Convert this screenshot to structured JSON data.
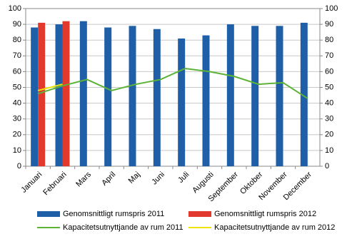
{
  "chart_data": {
    "type": "bar-line",
    "categories": [
      "Januari",
      "Februari",
      "Mars",
      "April",
      "Maj",
      "Juni",
      "Juli",
      "Augusti",
      "September",
      "Oktober",
      "November",
      "December"
    ],
    "series": [
      {
        "name": "Genomsnittligt rumspris 2011",
        "type": "bar",
        "color": "#1f5fa8",
        "values": [
          88,
          90,
          92,
          88,
          89,
          87,
          81,
          83,
          90,
          89,
          89,
          91
        ]
      },
      {
        "name": "Genomsnittligt rumspris 2012",
        "type": "bar",
        "color": "#e2392f",
        "values": [
          91,
          92,
          null,
          null,
          null,
          null,
          null,
          null,
          null,
          null,
          null,
          null
        ]
      },
      {
        "name": "Kapacitetsutnyttjande av rum 2011",
        "type": "line",
        "axis": "y2",
        "color": "#5cb336",
        "values": [
          46,
          51,
          55,
          48,
          52,
          55,
          62,
          60,
          57,
          52,
          53,
          43
        ]
      },
      {
        "name": "Kapacitetsutnyttjande av rum 2012",
        "type": "line",
        "axis": "y2",
        "color": "#f0e400",
        "values": [
          48,
          52,
          null,
          null,
          null,
          null,
          null,
          null,
          null,
          null,
          null,
          null
        ]
      }
    ],
    "ylim": [
      0,
      100
    ],
    "yticks": [
      0,
      10,
      20,
      30,
      40,
      50,
      60,
      70,
      80,
      90,
      100
    ],
    "y2lim": [
      0,
      100
    ],
    "y2ticks": [
      0,
      10,
      20,
      30,
      40,
      50,
      60,
      70,
      80,
      90,
      100
    ],
    "grid": true,
    "legend": "bottom"
  }
}
